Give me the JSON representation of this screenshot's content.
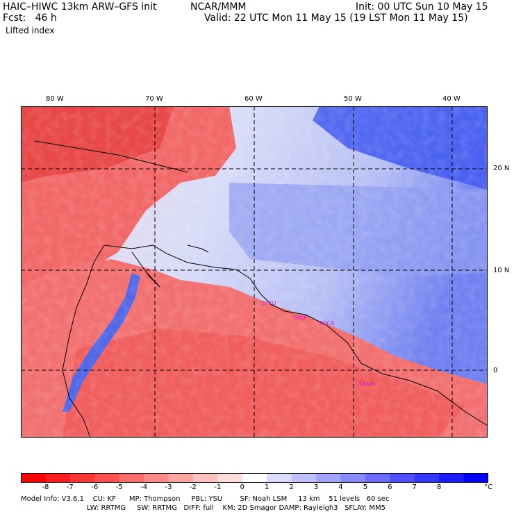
{
  "header": {
    "model_title": "HAIC–HIWC 13km ARW–GFS init",
    "org": "NCAR/MMM",
    "init": "Init: 00 UTC Sun 10 May 15",
    "fcst": "Fcst:   46 h",
    "valid": "Valid: 22 UTC Mon 11 May 15 (19 LST Mon 11 May 15)",
    "field": "Lifted index"
  },
  "map": {
    "lon_labels": [
      "80 W",
      "70 W",
      "60 W",
      "50 W",
      "40 W"
    ],
    "lat_labels": [
      "20 N",
      "10 N",
      "0"
    ],
    "sites": [
      "SYFU",
      "SMJP",
      "SOCA",
      "SBME"
    ],
    "colors": {
      "negative": "#ff2020",
      "positive": "#1030f0",
      "neutral": "#ffffff"
    }
  },
  "colorbar": {
    "ticks": [
      "-8",
      "-7",
      "-6",
      "-5",
      "-4",
      "-3",
      "-2",
      "-1",
      "0",
      "1",
      "2",
      "3",
      "4",
      "5",
      "6",
      "7",
      "8"
    ],
    "unit": "°C",
    "colors": [
      "#ff0000",
      "#ff1c1c",
      "#ff3636",
      "#ff5050",
      "#ff6c6c",
      "#ff8888",
      "#ffa4a4",
      "#ffc0c0",
      "#ffdcdc",
      "#ffffff",
      "#dcdcff",
      "#c0c0ff",
      "#a4a4ff",
      "#8888ff",
      "#6c6cff",
      "#5050ff",
      "#3636ff",
      "#1c1cff",
      "#0000ff"
    ]
  },
  "footer": {
    "line1": "Model Info: V3.6.1    CU: KF      MP: Thompson     PBL: YSU        SF: Noah LSM     13 km    51 levels   60 sec",
    "line2": "LW: RRTMG     SW: RRTMG   DIFF: full    KM: 2D Smagor DAMP: Rayleigh3   SFLAY: MM5"
  }
}
